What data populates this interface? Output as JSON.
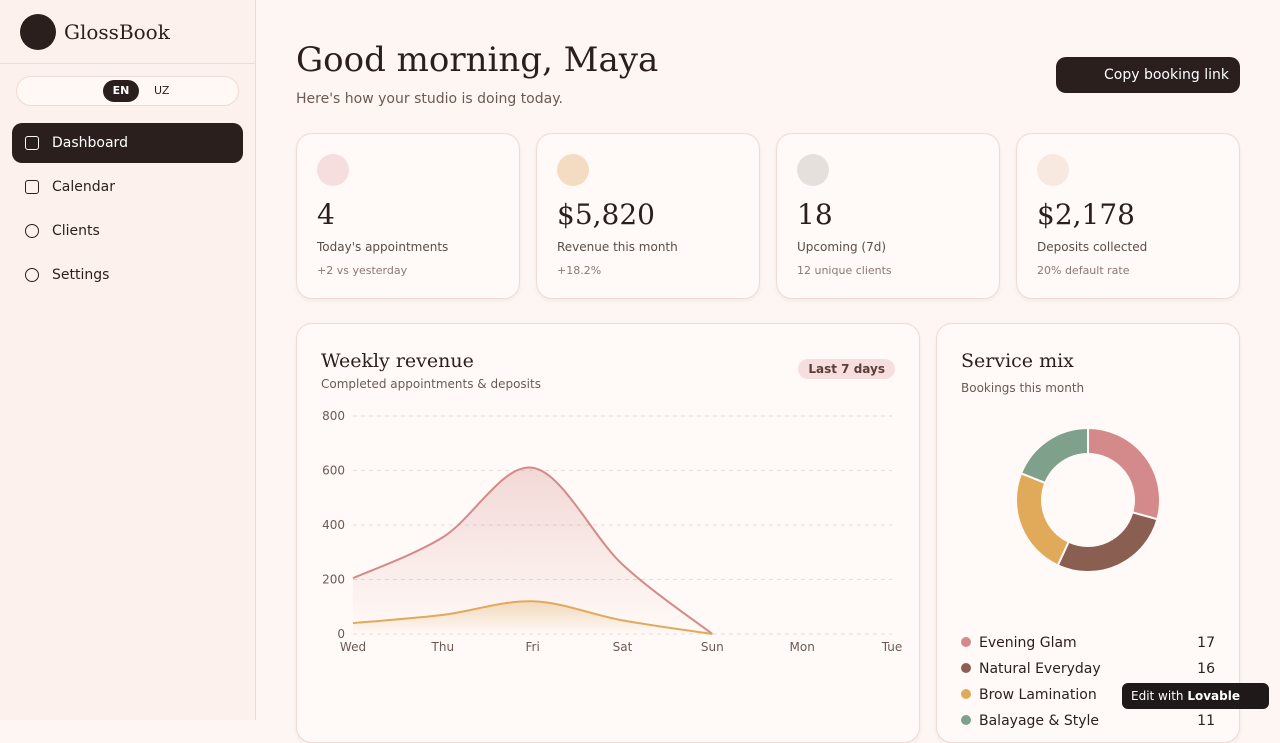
{
  "sidebar": {
    "brand": "GlossBook",
    "languages": [
      "EN",
      "UZ"
    ],
    "nav": [
      "Dashboard",
      "Calendar",
      "Clients",
      "Settings"
    ]
  },
  "header": {
    "title": "Good morning, Maya",
    "subtitle": "Here's how your studio is doing today.",
    "button": "Copy booking link"
  },
  "stats": [
    {
      "value": "4",
      "label": "Today's appointments",
      "note": "+2 vs yesterday"
    },
    {
      "value": "$5,820",
      "label": "Revenue this month",
      "note": "+18.2%"
    },
    {
      "value": "18",
      "label": "Upcoming (7d)",
      "note": "12 unique clients"
    },
    {
      "value": "$2,178",
      "label": "Deposits collected",
      "note": "20% default rate"
    }
  ],
  "chart_data": [
    {
      "type": "area",
      "title": "Weekly revenue",
      "subtitle": "Completed appointments & deposits",
      "badge": "Last 7 days",
      "categories": [
        "Wed",
        "Thu",
        "Fri",
        "Sat",
        "Sun",
        "Mon",
        "Tue"
      ],
      "series": [
        {
          "name": "Revenue",
          "color": "#d48a8a",
          "values": [
            205,
            355,
            610,
            255,
            0,
            null,
            null
          ]
        },
        {
          "name": "Deposits",
          "color": "#e0aa5a",
          "values": [
            40,
            70,
            120,
            50,
            0,
            null,
            null
          ]
        }
      ],
      "ylim": [
        0,
        800
      ],
      "yticks": [
        0,
        200,
        400,
        600,
        800
      ],
      "grid": true
    },
    {
      "type": "donut",
      "title": "Service mix",
      "subtitle": "Bookings this month",
      "categories": [
        "Evening Glam",
        "Natural Everyday",
        "Brow Lamination",
        "Balayage & Style"
      ],
      "values": [
        17,
        16,
        14,
        11
      ],
      "colors": [
        "#d48a8a",
        "#8b5e52",
        "#e0aa5a",
        "#7fa08a"
      ]
    }
  ],
  "footer_badge": {
    "text": "Edit with",
    "brand": "Lovable"
  }
}
